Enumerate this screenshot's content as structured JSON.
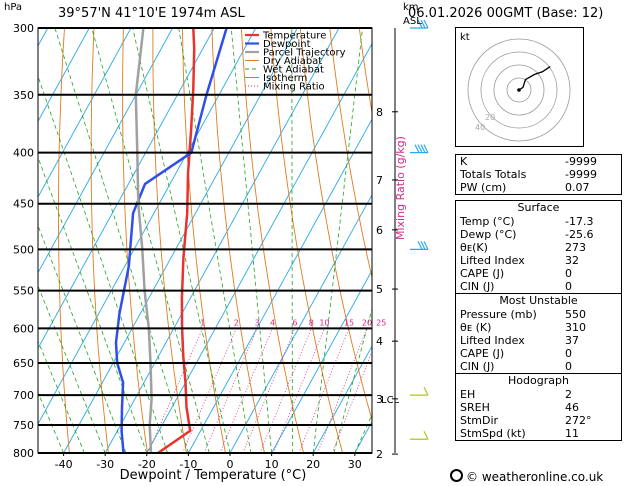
{
  "header": {
    "location": "39°57'N  41°10'E  1974m  ASL",
    "datetime": "06.01.2026  00GMT  (Base: 12)",
    "unit_pressure": "hPa",
    "unit_km": "km",
    "unit_asl": "ASL"
  },
  "chart_data": {
    "type": "line",
    "title": "",
    "xlabel": "Dewpoint / Temperature (°C)",
    "ylabel": "hPa",
    "y2label": "Mixing Ratio (g/kg)",
    "xlim": [
      -47,
      34
    ],
    "ylim": [
      800,
      300
    ],
    "y_scale": "log",
    "x_ticks": [
      -40,
      -30,
      -20,
      -10,
      0,
      10,
      20,
      30
    ],
    "pressure_levels": [
      300,
      350,
      400,
      450,
      500,
      550,
      600,
      650,
      700,
      750,
      800
    ],
    "km_ticks": [
      {
        "km": "8",
        "p": 364
      },
      {
        "km": "7",
        "p": 426
      },
      {
        "km": "6",
        "p": 478
      },
      {
        "km": "5",
        "p": 548
      },
      {
        "km": "4",
        "p": 618
      },
      {
        "km": "3",
        "p": 706
      },
      {
        "km": "2",
        "p": 802
      }
    ],
    "lcl": {
      "label": "LCL",
      "p": 706
    },
    "mixing_ratio_labels": [
      "1",
      "2",
      "3",
      "4",
      "6",
      "8",
      "10",
      "15",
      "20",
      "25"
    ],
    "mixing_ratio_values": [
      1,
      2,
      3,
      4,
      6,
      8,
      10,
      15,
      20,
      25
    ],
    "legend": [
      "Temperature",
      "Dewpoint",
      "Parcel Trajectory",
      "Dry Adiabat",
      "Wet Adiabat",
      "Isotherm",
      "Mixing Ratio"
    ],
    "legend_position": "top-center",
    "colors": {
      "temperature": "#e8322c",
      "dewpoint": "#2f4fe8",
      "parcel": "#a0a0a0",
      "dry_adiabat": "#e07b1e",
      "wet_adiabat": "#1ea51e",
      "isotherm": "#29a9e8",
      "mixing_ratio": "#d6298c"
    },
    "series": [
      {
        "name": "Temperature",
        "points": [
          [
            -17.3,
            800
          ],
          [
            -12.5,
            760
          ],
          [
            -16.5,
            720
          ],
          [
            -20,
            680
          ],
          [
            -24,
            640
          ],
          [
            -28,
            600
          ],
          [
            -32,
            560
          ],
          [
            -37,
            510
          ],
          [
            -42,
            460
          ],
          [
            -47,
            420
          ],
          [
            -52,
            380
          ],
          [
            -57,
            345
          ],
          [
            -62,
            315
          ],
          [
            -65,
            300
          ]
        ]
      },
      {
        "name": "Dewpoint",
        "points": [
          [
            -25.6,
            800
          ],
          [
            -29,
            760
          ],
          [
            -32,
            720
          ],
          [
            -35,
            680
          ],
          [
            -39,
            650
          ],
          [
            -42,
            620
          ],
          [
            -45,
            580
          ],
          [
            -49,
            520
          ],
          [
            -55,
            460
          ],
          [
            -56,
            430
          ],
          [
            -49,
            400
          ],
          [
            -53,
            350
          ],
          [
            -57,
            300
          ]
        ]
      },
      {
        "name": "Parcel Trajectory",
        "points": [
          [
            -19,
            800
          ],
          [
            -23,
            750
          ],
          [
            -26,
            706
          ],
          [
            -31,
            650
          ],
          [
            -36,
            600
          ],
          [
            -42,
            550
          ],
          [
            -48,
            500
          ],
          [
            -55,
            450
          ],
          [
            -62,
            400
          ],
          [
            -70,
            350
          ],
          [
            -77,
            300
          ]
        ]
      }
    ],
    "wind_barbs": [
      {
        "p": 300,
        "speed_kt": 30
      },
      {
        "p": 400,
        "speed_kt": 35
      },
      {
        "p": 500,
        "speed_kt": 30
      },
      {
        "p": 700,
        "speed_kt": 10
      },
      {
        "p": 775,
        "speed_kt": 5
      }
    ],
    "hodograph": {
      "label": "kt",
      "ring_labels": [
        "20",
        "40"
      ],
      "points": [
        [
          0,
          0
        ],
        [
          3,
          2
        ],
        [
          5,
          8
        ],
        [
          12,
          12
        ],
        [
          18,
          14
        ],
        [
          24,
          18
        ]
      ]
    }
  },
  "indices": {
    "top": [
      {
        "label": "K",
        "value": "-9999"
      },
      {
        "label": "Totals Totals",
        "value": "-9999"
      },
      {
        "label": "PW (cm)",
        "value": "0.07"
      }
    ],
    "surface": {
      "title": "Surface",
      "rows": [
        {
          "label": "Temp (°C)",
          "value": "-17.3"
        },
        {
          "label": "Dewp (°C)",
          "value": "-25.6"
        },
        {
          "label": "θᴇ(K)",
          "value": "273"
        },
        {
          "label": "Lifted Index",
          "value": "32"
        },
        {
          "label": "CAPE (J)",
          "value": "0"
        },
        {
          "label": "CIN (J)",
          "value": "0"
        }
      ]
    },
    "most_unstable": {
      "title": "Most Unstable",
      "rows": [
        {
          "label": "Pressure (mb)",
          "value": "550"
        },
        {
          "label": "θᴇ (K)",
          "value": "310"
        },
        {
          "label": "Lifted Index",
          "value": "37"
        },
        {
          "label": "CAPE (J)",
          "value": "0"
        },
        {
          "label": "CIN (J)",
          "value": "0"
        }
      ]
    },
    "hodograph": {
      "title": "Hodograph",
      "rows": [
        {
          "label": "EH",
          "value": "2"
        },
        {
          "label": "SREH",
          "value": "46"
        },
        {
          "label": "StmDir",
          "value": "272°"
        },
        {
          "label": "StmSpd (kt)",
          "value": "11"
        }
      ]
    }
  },
  "footer": {
    "copyright": "© weatheronline.co.uk"
  }
}
